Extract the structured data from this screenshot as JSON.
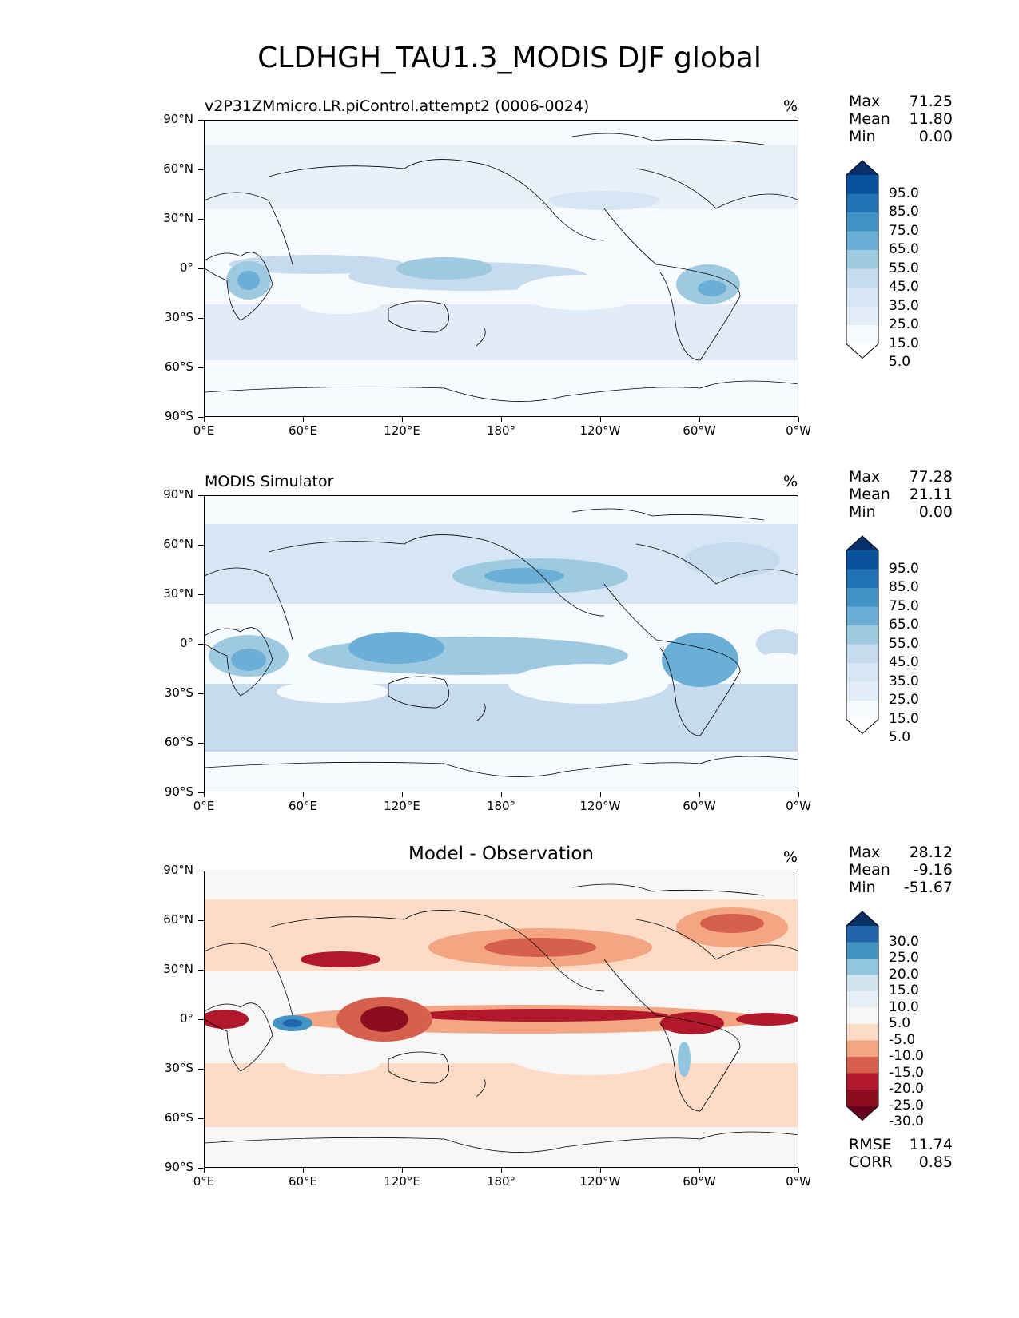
{
  "figure": {
    "title": "CLDHGH_TAU1.3_MODIS DJF global",
    "lat_labels": [
      "90°N",
      "60°N",
      "30°N",
      "0°",
      "30°S",
      "60°S",
      "90°S"
    ],
    "lon_labels": [
      "0°E",
      "60°E",
      "120°E",
      "180°",
      "120°W",
      "60°W",
      "0°W"
    ]
  },
  "panels": [
    {
      "name": "model",
      "title": "v2P31ZMmicro.LR.piControl.attempt2 (0006-0024)",
      "title_style": "left",
      "units": "%",
      "stats": [
        {
          "label": "Max",
          "value": "71.25"
        },
        {
          "label": "Mean",
          "value": "11.80"
        },
        {
          "label": "Min",
          "value": "0.00"
        }
      ],
      "colorbar_labels": [
        "95.0",
        "85.0",
        "75.0",
        "65.0",
        "55.0",
        "45.0",
        "35.0",
        "25.0",
        "15.0",
        "5.0"
      ],
      "colorbar_colors": [
        "#08306b",
        "#08519c",
        "#2171b5",
        "#4292c6",
        "#6baed6",
        "#9ecae1",
        "#c6dbef",
        "#d6e6f4",
        "#e3eef9",
        "#f7fbff",
        "#ffffff"
      ],
      "extra_stats": []
    },
    {
      "name": "observation",
      "title": "MODIS Simulator",
      "title_style": "left",
      "units": "%",
      "stats": [
        {
          "label": "Max",
          "value": "77.28"
        },
        {
          "label": "Mean",
          "value": "21.11"
        },
        {
          "label": "Min",
          "value": "0.00"
        }
      ],
      "colorbar_labels": [
        "95.0",
        "85.0",
        "75.0",
        "65.0",
        "55.0",
        "45.0",
        "35.0",
        "25.0",
        "15.0",
        "5.0"
      ],
      "colorbar_colors": [
        "#08306b",
        "#08519c",
        "#2171b5",
        "#4292c6",
        "#6baed6",
        "#9ecae1",
        "#c6dbef",
        "#d6e6f4",
        "#e3eef9",
        "#f7fbff",
        "#ffffff"
      ],
      "extra_stats": []
    },
    {
      "name": "difference",
      "title": "Model - Observation",
      "title_style": "center",
      "units": "%",
      "stats": [
        {
          "label": "Max",
          "value": "28.12"
        },
        {
          "label": "Mean",
          "value": "-9.16"
        },
        {
          "label": "Min",
          "value": "-51.67"
        }
      ],
      "colorbar_labels": [
        "30.0",
        "25.0",
        "20.0",
        "15.0",
        "10.0",
        "5.0",
        "-5.0",
        "-10.0",
        "-15.0",
        "-20.0",
        "-25.0",
        "-30.0"
      ],
      "colorbar_colors": [
        "#053061",
        "#2166ac",
        "#4393c3",
        "#92c5de",
        "#d1e5f0",
        "#e7f0f5",
        "#f7f7f7",
        "#fddbc7",
        "#f4a582",
        "#d6604d",
        "#b2182b",
        "#8c0d1f",
        "#67001f"
      ],
      "extra_stats": [
        {
          "label": "RMSE",
          "value": "11.74"
        },
        {
          "label": "CORR",
          "value": "0.85"
        }
      ]
    }
  ]
}
